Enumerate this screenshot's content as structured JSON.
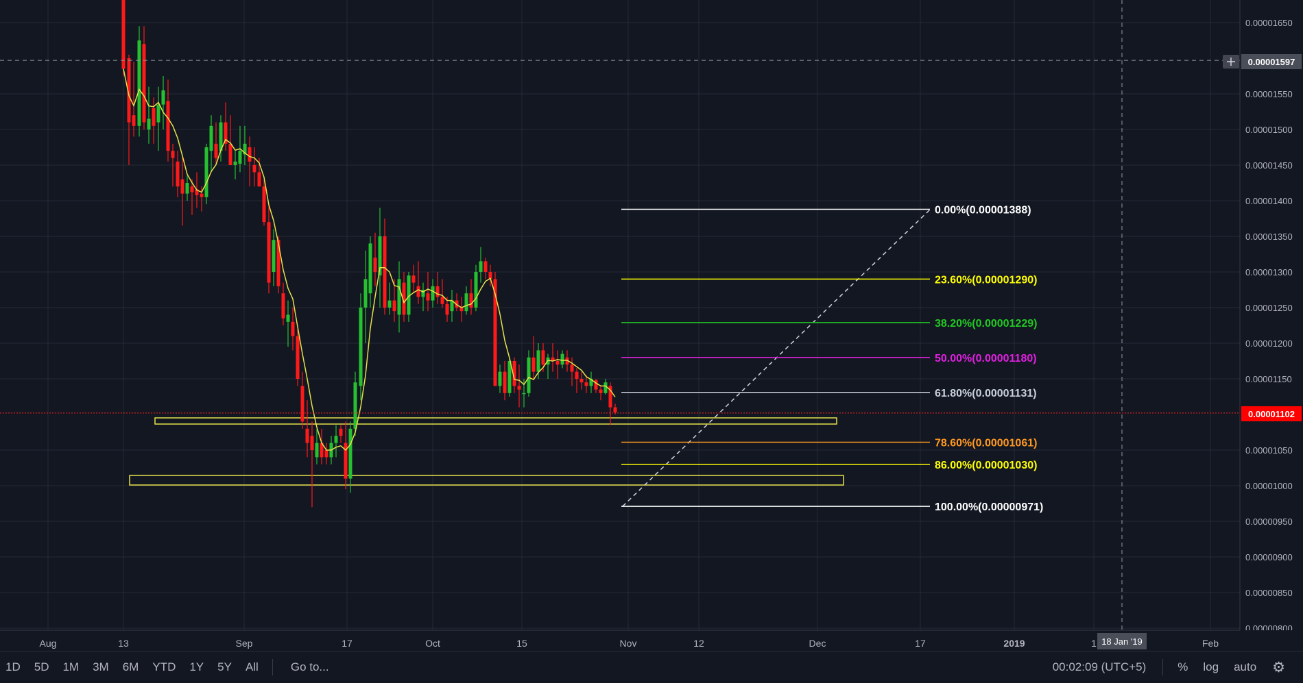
{
  "colors": {
    "background": "#131722",
    "grid": "#262a36",
    "up": "#26c030",
    "down": "#ff1a1a",
    "ma": "#e6e24a",
    "current_price": "#ff2020",
    "zone": "#e6e24a"
  },
  "price_axis": {
    "labels": [
      "0.00001650",
      "0.00001550",
      "0.00001500",
      "0.00001450",
      "0.00001400",
      "0.00001350",
      "0.00001300",
      "0.00001250",
      "0.00001200",
      "0.00001150",
      "0.00001050",
      "0.00001000",
      "0.00000950",
      "0.00000900",
      "0.00000850",
      "0.00000800"
    ],
    "crosshair_price": "0.00001597",
    "current_price": "0.00001102"
  },
  "time_axis": {
    "labels": [
      "Aug",
      "13",
      "Sep",
      "17",
      "Oct",
      "15",
      "Nov",
      "12",
      "Dec",
      "17",
      "2019",
      "1",
      "Feb"
    ],
    "crosshair_date": "18 Jan '19"
  },
  "fib_levels": [
    {
      "label": "0.00%(0.00001388)",
      "color": "#ffffff"
    },
    {
      "label": "23.60%(0.00001290)",
      "color": "#ffff00"
    },
    {
      "label": "38.20%(0.00001229)",
      "color": "#22c822"
    },
    {
      "label": "50.00%(0.00001180)",
      "color": "#e020e0"
    },
    {
      "label": "61.80%(0.00001131)",
      "color": "#c8d0dc"
    },
    {
      "label": "78.60%(0.00001061)",
      "color": "#ff9820"
    },
    {
      "label": "86.00%(0.00001030)",
      "color": "#ffff00"
    },
    {
      "label": "100.00%(0.00000971)",
      "color": "#ffffff"
    }
  ],
  "bottom_bar": {
    "periods": [
      "1D",
      "5D",
      "1M",
      "3M",
      "6M",
      "YTD",
      "1Y",
      "5Y",
      "All"
    ],
    "goto": "Go to...",
    "clock": "00:02:09 (UTC+5)",
    "percent": "%",
    "log": "log",
    "auto": "auto"
  }
}
